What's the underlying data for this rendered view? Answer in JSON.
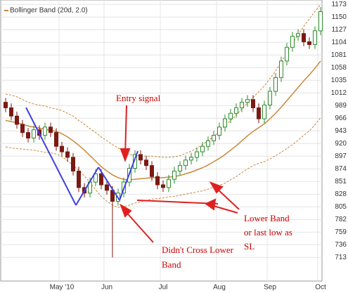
{
  "chart_data": {
    "type": "candlestick",
    "legend": "Bollinger Band (20d, 2.0)",
    "categories": [
      null,
      null,
      null,
      null,
      null,
      null,
      null,
      null,
      null,
      null,
      "May '10",
      null,
      null,
      null,
      null,
      null,
      null,
      null,
      "Jun",
      null,
      null,
      null,
      null,
      null,
      null,
      null,
      null,
      null,
      "Jul",
      null,
      null,
      null,
      null,
      null,
      null,
      null,
      null,
      null,
      "Aug",
      null,
      null,
      null,
      null,
      null,
      null,
      null,
      null,
      "Sep",
      null,
      null,
      null,
      null,
      null,
      null,
      null,
      null,
      "Oct"
    ],
    "open": [
      995,
      985,
      970,
      955,
      940,
      930,
      945,
      935,
      950,
      940,
      915,
      905,
      895,
      870,
      840,
      830,
      850,
      865,
      845,
      835,
      815,
      830,
      850,
      875,
      900,
      890,
      880,
      860,
      845,
      840,
      855,
      870,
      880,
      890,
      895,
      905,
      915,
      925,
      935,
      950,
      965,
      975,
      985,
      995,
      1000,
      985,
      965,
      990,
      1015,
      1040,
      1070,
      1095,
      1115,
      1120,
      1105,
      1100,
      1125
    ],
    "high": [
      1003,
      993,
      978,
      963,
      948,
      953,
      953,
      958,
      958,
      948,
      923,
      913,
      903,
      878,
      848,
      858,
      873,
      873,
      853,
      843,
      838,
      858,
      883,
      908,
      908,
      898,
      888,
      868,
      853,
      863,
      878,
      888,
      898,
      903,
      913,
      923,
      933,
      943,
      958,
      973,
      983,
      993,
      1003,
      1008,
      1008,
      993,
      998,
      1023,
      1048,
      1078,
      1103,
      1123,
      1128,
      1128,
      1113,
      1133,
      1168
    ],
    "low": [
      977,
      962,
      947,
      932,
      922,
      922,
      927,
      927,
      932,
      907,
      897,
      887,
      862,
      832,
      822,
      822,
      842,
      837,
      827,
      713,
      807,
      822,
      842,
      867,
      882,
      872,
      852,
      837,
      832,
      832,
      847,
      862,
      872,
      882,
      887,
      897,
      907,
      917,
      927,
      942,
      957,
      967,
      977,
      987,
      977,
      957,
      957,
      982,
      1007,
      1032,
      1062,
      1087,
      1107,
      1097,
      1092,
      1092,
      1117
    ],
    "close": [
      985,
      970,
      955,
      940,
      930,
      945,
      935,
      950,
      940,
      915,
      905,
      895,
      870,
      840,
      830,
      850,
      865,
      845,
      835,
      815,
      830,
      850,
      875,
      900,
      890,
      880,
      860,
      845,
      840,
      855,
      870,
      880,
      890,
      895,
      905,
      915,
      925,
      935,
      950,
      965,
      975,
      985,
      995,
      1000,
      985,
      965,
      990,
      1015,
      1040,
      1070,
      1095,
      1115,
      1120,
      1105,
      1100,
      1125,
      1160
    ],
    "up_color": "#2e8b2e",
    "down_color": "#7a1a12",
    "bands": {
      "color": "#c8883a",
      "upper": [
        1010,
        1008,
        1005,
        1000,
        995,
        992,
        990,
        988,
        985,
        983,
        980,
        975,
        970,
        962,
        955,
        947,
        940,
        932,
        925,
        918,
        912,
        905,
        900,
        898,
        898,
        897,
        897,
        896,
        895,
        895,
        896,
        898,
        902,
        906,
        912,
        918,
        925,
        933,
        942,
        952,
        962,
        972,
        983,
        994,
        1004,
        1014,
        1025,
        1038,
        1052,
        1068,
        1085,
        1102,
        1118,
        1133,
        1147,
        1160,
        1173
      ],
      "middle": [
        962,
        960,
        958,
        955,
        952,
        950,
        948,
        946,
        944,
        942,
        938,
        932,
        925,
        917,
        908,
        898,
        888,
        878,
        870,
        863,
        858,
        855,
        854,
        855,
        856,
        857,
        858,
        858,
        858,
        859,
        860,
        862,
        865,
        868,
        872,
        876,
        881,
        887,
        893,
        900,
        908,
        916,
        925,
        934,
        942,
        949,
        956,
        965,
        975,
        986,
        998,
        1010,
        1022,
        1034,
        1045,
        1057,
        1070
      ],
      "lower": [
        914,
        912,
        911,
        910,
        909,
        908,
        906,
        904,
        903,
        901,
        896,
        889,
        880,
        872,
        861,
        849,
        836,
        824,
        815,
        808,
        804,
        805,
        808,
        812,
        814,
        817,
        819,
        820,
        821,
        823,
        824,
        826,
        828,
        830,
        832,
        834,
        837,
        841,
        844,
        848,
        854,
        860,
        867,
        874,
        880,
        884,
        887,
        892,
        898,
        904,
        911,
        918,
        926,
        935,
        943,
        954,
        967
      ]
    },
    "ylim": [
      670,
      1181
    ],
    "yticks": [
      713,
      736,
      759,
      782,
      805,
      828,
      851,
      874,
      897,
      920,
      943,
      966,
      989,
      1012,
      1035,
      1058,
      1081,
      1104,
      1127,
      1150,
      1173
    ],
    "grid": true,
    "annotations": [
      [
        "Entry signal"
      ],
      [
        "Didn't Cross Lower",
        "Band"
      ],
      [
        "Lower Band",
        "or last low as",
        "SL"
      ]
    ]
  }
}
